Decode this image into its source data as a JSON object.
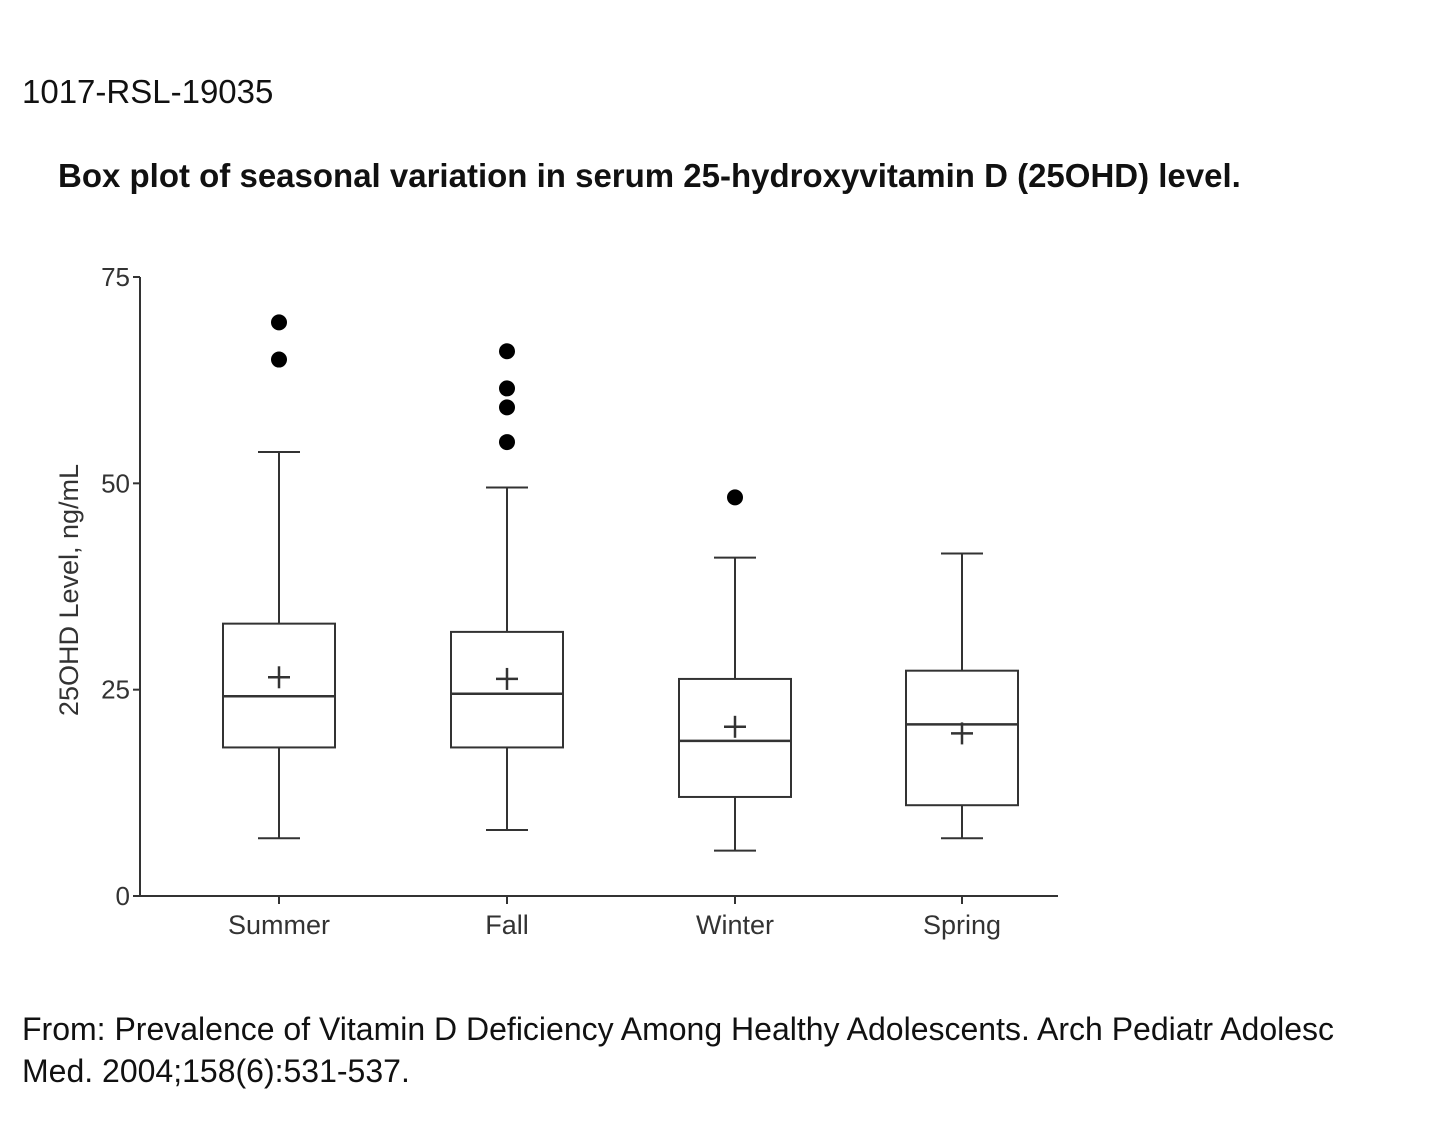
{
  "figure": {
    "id": "1017-RSL-19035",
    "title": "Box plot of seasonal variation in serum 25-hydroxyvitamin D (25OHD) level.",
    "citation": "From: Prevalence of Vitamin D Deficiency Among Healthy Adolescents. Arch Pediatr Adolesc Med. 2004;158(6):531-537."
  },
  "chart_data": {
    "type": "box",
    "title": "",
    "xlabel": "",
    "ylabel": "25OHD Level, ng/mL",
    "ylim": [
      0,
      75
    ],
    "yticks": [
      0,
      25,
      50,
      75
    ],
    "categories": [
      "Summer",
      "Fall",
      "Winter",
      "Spring"
    ],
    "boxes": [
      {
        "category": "Summer",
        "whisker_low": 7,
        "q1": 18,
        "median": 24.2,
        "q3": 33,
        "whisker_high": 53.8,
        "mean": 26.5,
        "outliers": [
          65,
          69.5
        ]
      },
      {
        "category": "Fall",
        "whisker_low": 8,
        "q1": 18,
        "median": 24.5,
        "q3": 32,
        "whisker_high": 49.5,
        "mean": 26.3,
        "outliers": [
          55,
          59.2,
          61.5,
          66
        ]
      },
      {
        "category": "Winter",
        "whisker_low": 5.5,
        "q1": 12,
        "median": 18.8,
        "q3": 26.3,
        "whisker_high": 41,
        "mean": 20.5,
        "outliers": [
          48.3
        ]
      },
      {
        "category": "Spring",
        "whisker_low": 7,
        "q1": 11,
        "median": 20.8,
        "q3": 27.3,
        "whisker_high": 41.5,
        "mean": 19.7,
        "outliers": []
      }
    ],
    "grid": false,
    "legend": "none",
    "colors": {
      "line": "#333333",
      "outlier": "#000000",
      "box_fill": "#ffffff"
    }
  }
}
